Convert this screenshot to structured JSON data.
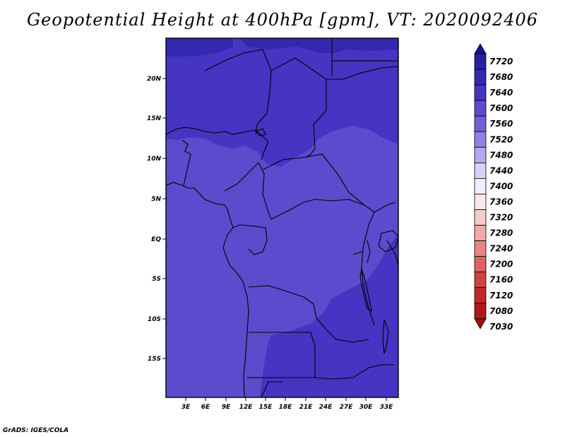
{
  "title": "Geopotential Height at 400hPa [gpm], VT: 2020092406",
  "footer": "GrADS: IGES/COLA",
  "map": {
    "lat_labels": [
      "20N",
      "15N",
      "10N",
      "5N",
      "EQ",
      "5S",
      "10S",
      "15S"
    ],
    "lon_labels": [
      "3E",
      "6E",
      "9E",
      "12E",
      "15E",
      "18E",
      "21E",
      "24E",
      "27E",
      "30E",
      "33E"
    ]
  },
  "colorbar": {
    "levels": [
      "7720",
      "7680",
      "7640",
      "7600",
      "7560",
      "7520",
      "7480",
      "7440",
      "7400",
      "7360",
      "7320",
      "7280",
      "7240",
      "7200",
      "7160",
      "7120",
      "7080",
      "7030"
    ],
    "colors": [
      "#1e0f8f",
      "#2a1fa2",
      "#3528b0",
      "#4535c2",
      "#5a4ccd",
      "#6e61d8",
      "#8e82e4",
      "#b2aaef",
      "#d5d1f7",
      "#f0eefc",
      "#fde8e8",
      "#f8caca",
      "#f2a8a8",
      "#e88585",
      "#de6262",
      "#d34242",
      "#c42828",
      "#b01919",
      "#a01010"
    ]
  },
  "fill_colors": {
    "c7560": "#5a4ccd",
    "c7600": "#4535c2",
    "c7640": "#3528b0"
  }
}
